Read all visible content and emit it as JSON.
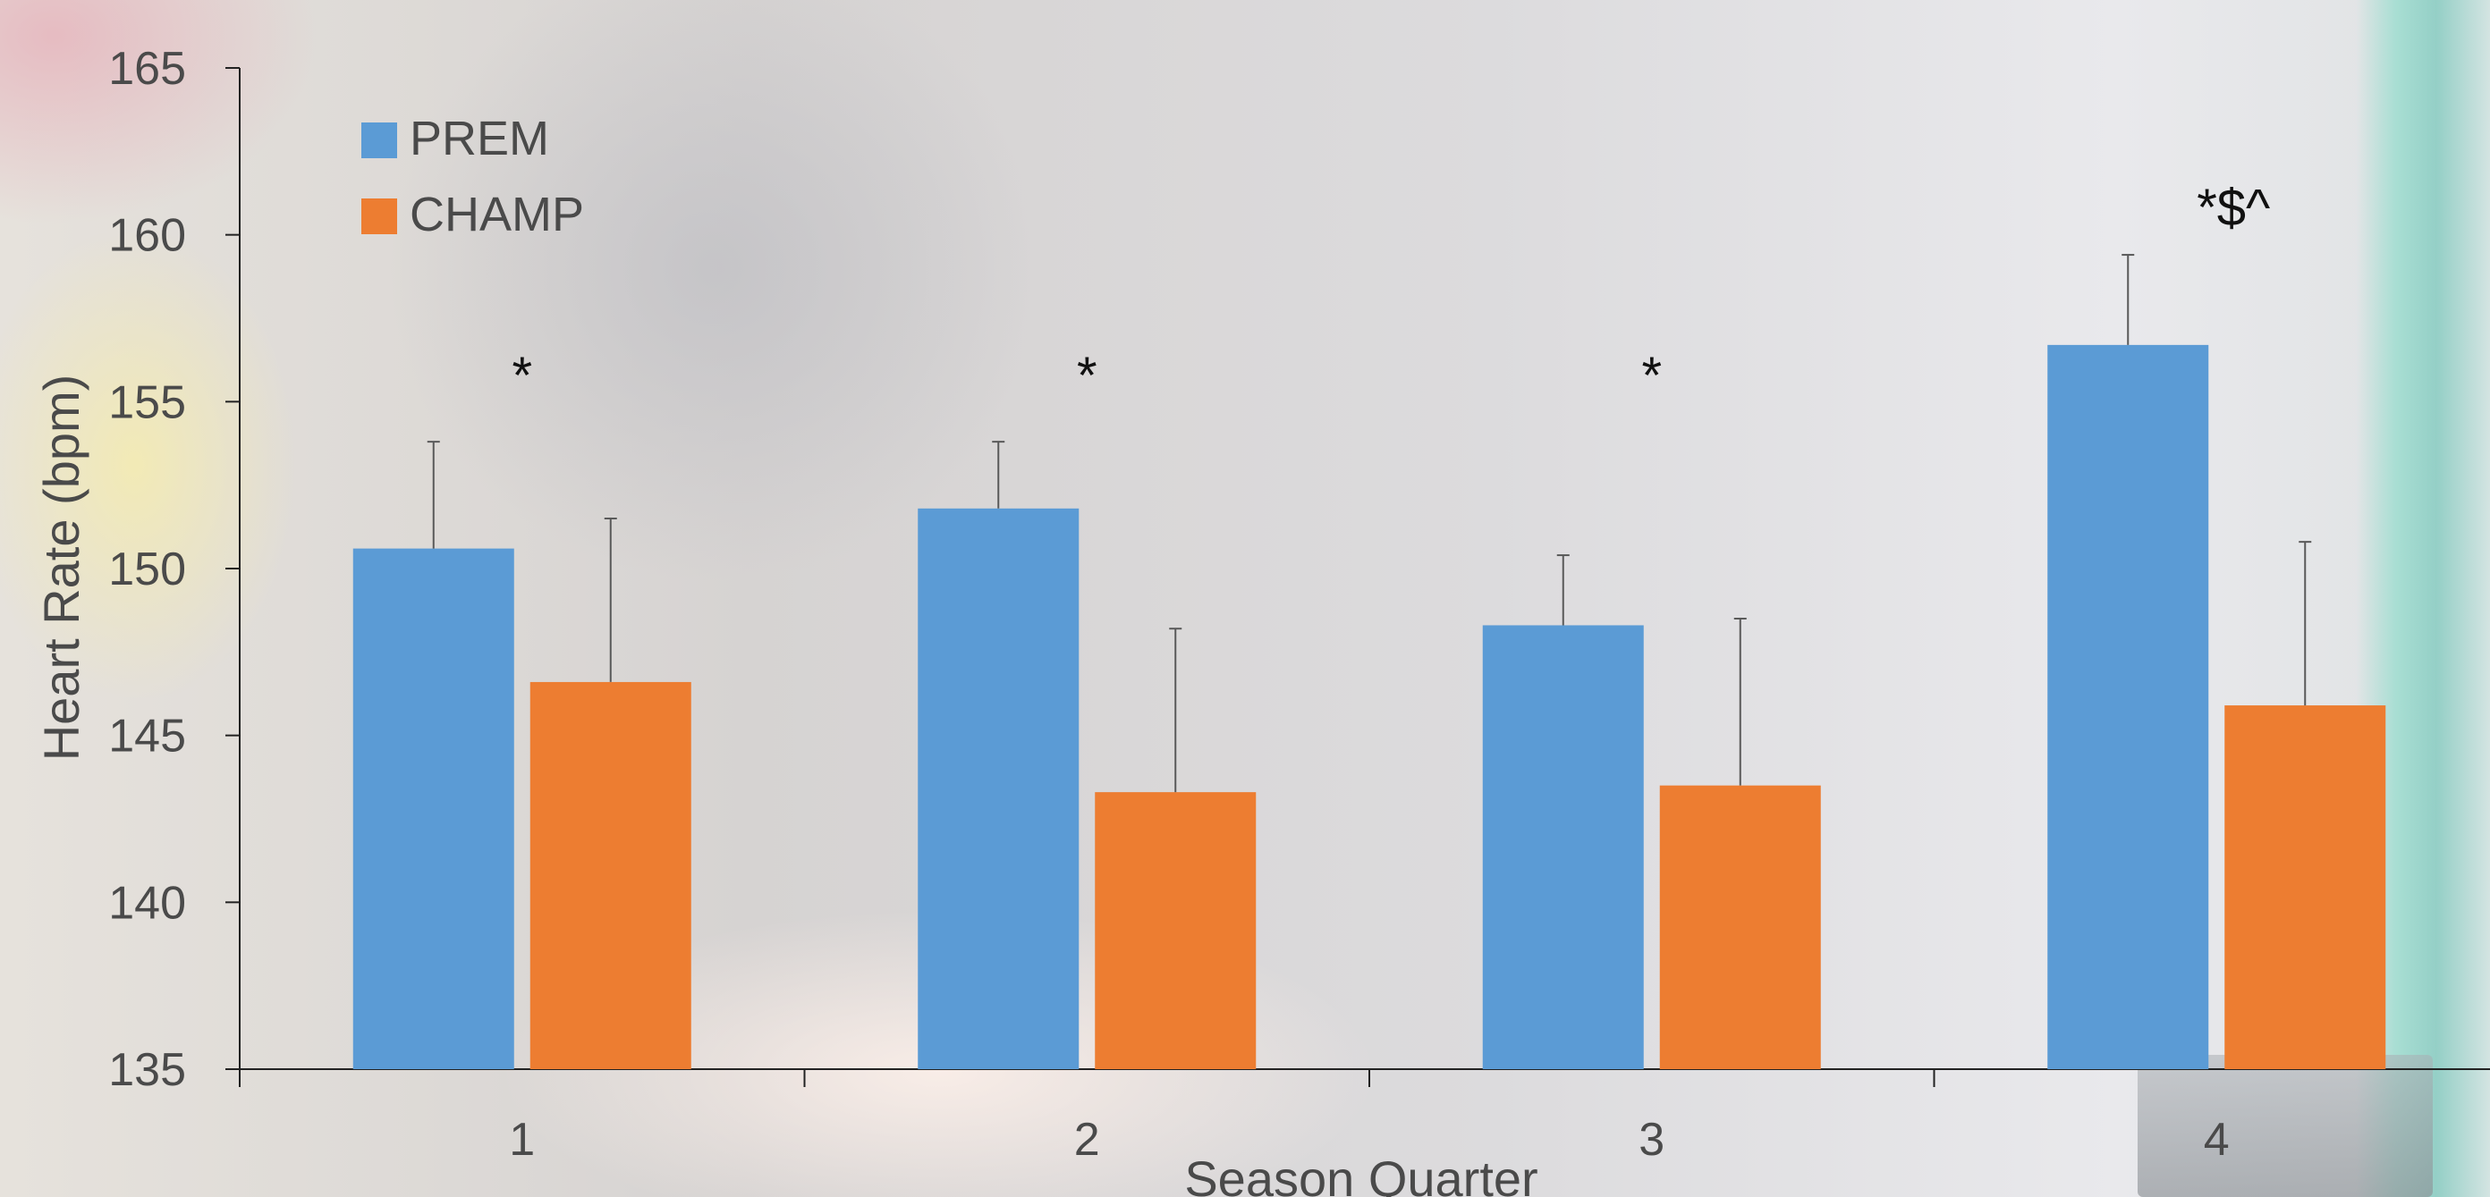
{
  "chart_data": {
    "type": "bar",
    "categories": [
      "1",
      "2",
      "3",
      "4"
    ],
    "series": [
      {
        "name": "PREM",
        "color": "#5b9bd5",
        "values": [
          150.6,
          151.8,
          148.3,
          156.7
        ],
        "errors": [
          3.2,
          2.0,
          2.1,
          2.7
        ]
      },
      {
        "name": "CHAMP",
        "color": "#ed7d31",
        "values": [
          146.6,
          143.3,
          143.5,
          145.9
        ],
        "errors": [
          4.9,
          4.9,
          5.0,
          4.9
        ]
      }
    ],
    "annotations": [
      "*",
      "*",
      "*",
      "*$^"
    ],
    "xlabel": "Season Quarter",
    "ylabel": "Heart Rate (bpm)",
    "ylim": [
      135,
      165
    ],
    "yticks": [
      "135",
      "140",
      "145",
      "150",
      "155",
      "160",
      "165"
    ],
    "grid": false,
    "legend_position": "top-left",
    "axis_color": "#222222",
    "error_bar_color": "#595959"
  }
}
